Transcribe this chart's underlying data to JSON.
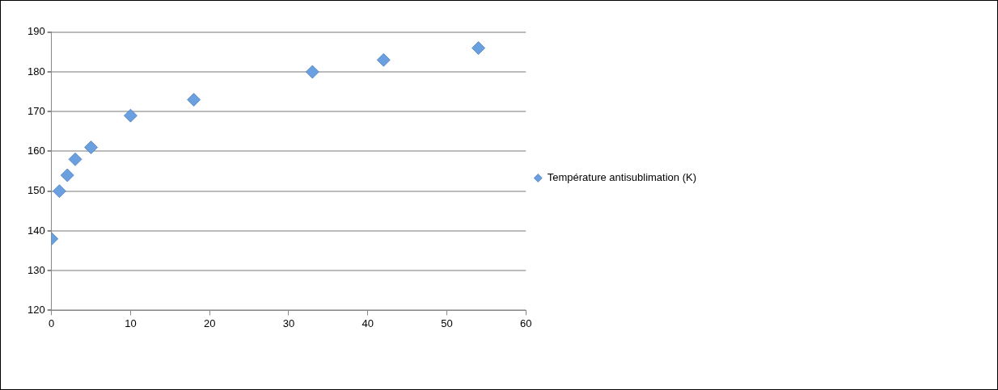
{
  "chart_data": {
    "type": "scatter",
    "x": [
      0,
      1,
      2,
      3,
      5,
      10,
      18,
      33,
      42,
      54
    ],
    "series": [
      {
        "name": "Température antisublimation (K)",
        "color": "#6a9fe0",
        "values": [
          138,
          150,
          154,
          158,
          161,
          169,
          173,
          180,
          183,
          186
        ]
      }
    ],
    "xlim": [
      0,
      60
    ],
    "xticks": [
      0,
      10,
      20,
      30,
      40,
      50,
      60
    ],
    "ylim": [
      120,
      190
    ],
    "yticks": [
      120,
      130,
      140,
      150,
      160,
      170,
      180,
      190
    ],
    "grid": "y",
    "legend": "right",
    "marker": "diamond"
  }
}
